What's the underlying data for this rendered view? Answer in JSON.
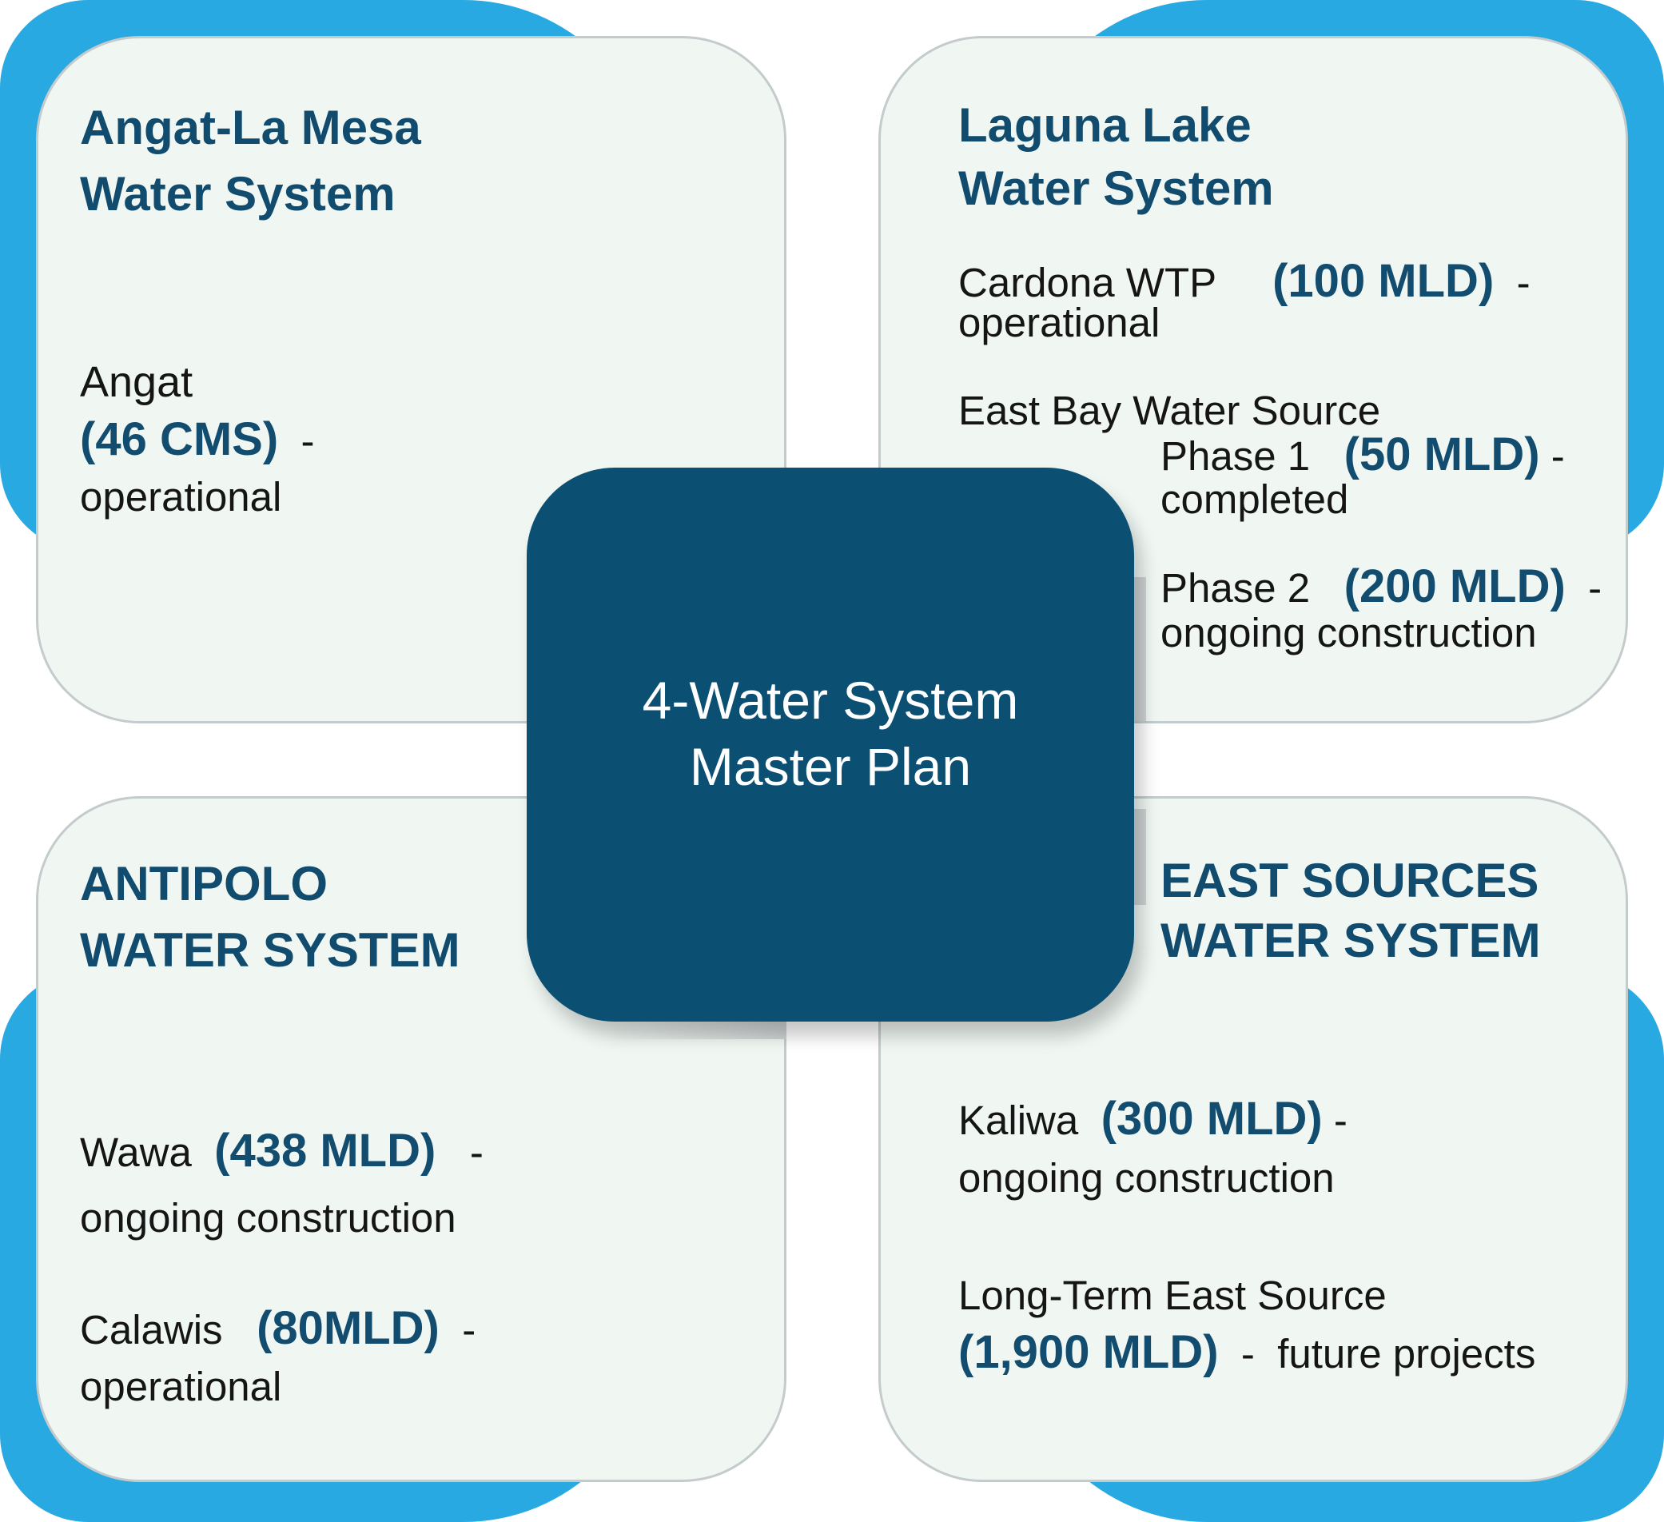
{
  "colors": {
    "accent": "#29a9e1",
    "card": "#f0f7f3",
    "center": "#0b4f73",
    "title": "#114b6e"
  },
  "center": {
    "line1": "4-Water System",
    "line2": "Master Plan"
  },
  "cards": {
    "angat": {
      "title1": "Angat-La Mesa",
      "title2": "Water System",
      "source_name": "Angat",
      "capacity": "(46 CMS)",
      "dash": "-",
      "status": "operational"
    },
    "laguna": {
      "title1": "Laguna Lake",
      "title2": "Water System",
      "cardona_name": "Cardona WTP",
      "cardona_capacity": "(100 MLD)",
      "cardona_dash": "-",
      "cardona_status": "operational",
      "eastbay_name": "East Bay Water Source",
      "phase1_name": "Phase 1",
      "phase1_capacity": "(50 MLD)",
      "phase1_dash": "-",
      "phase1_status": "completed",
      "phase2_name": "Phase 2",
      "phase2_capacity": "(200 MLD)",
      "phase2_dash": "-",
      "phase2_status": "ongoing construction"
    },
    "antipolo": {
      "title1": "ANTIPOLO",
      "title2": "WATER SYSTEM",
      "wawa_name": "Wawa",
      "wawa_capacity": "(438 MLD)",
      "wawa_dash": "-",
      "wawa_status": "ongoing construction",
      "calawis_name": "Calawis",
      "calawis_capacity": "(80MLD)",
      "calawis_dash": "-",
      "calawis_status": "operational"
    },
    "east": {
      "title1": "EAST SOURCES",
      "title2": "WATER SYSTEM",
      "kaliwa_name": "Kaliwa",
      "kaliwa_capacity": "(300 MLD)",
      "kaliwa_dash": "-",
      "kaliwa_status": "ongoing construction",
      "longterm_name": "Long-Term East Source",
      "longterm_capacity": "(1,900 MLD)",
      "longterm_dash": "-",
      "longterm_status": "future projects"
    }
  }
}
